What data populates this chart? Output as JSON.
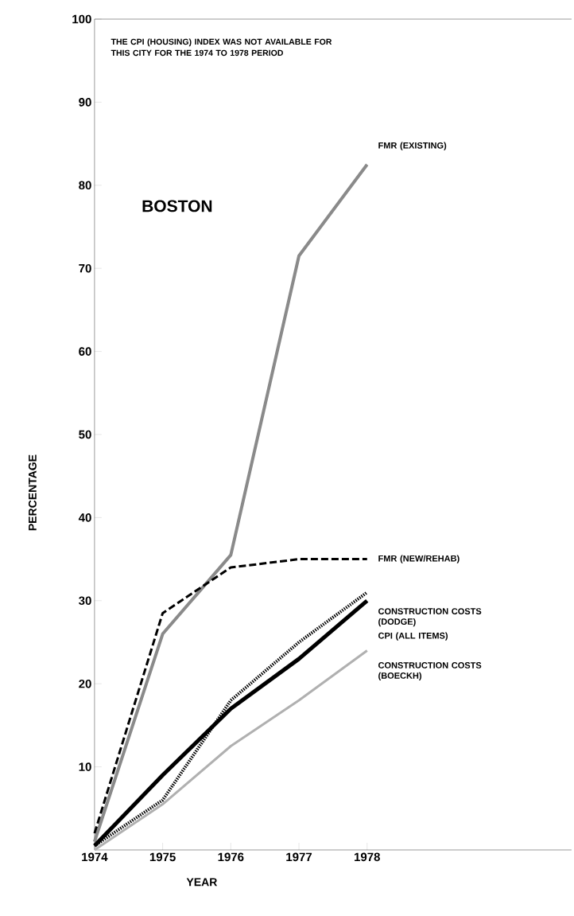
{
  "chart_data": {
    "type": "line",
    "title": "BOSTON",
    "xlabel": "YEAR",
    "ylabel": "PERCENTAGE",
    "annotations": [
      "THE CPI (HOUSING) INDEX WAS NOT AVAILABLE FOR THIS CITY FOR THE 1974 TO 1978 PERIOD"
    ],
    "x": [
      1974,
      1975,
      1976,
      1977,
      1978
    ],
    "series": [
      {
        "name": "FMR (EXISTING)",
        "color": "#8a8a8a",
        "line_style": "solid",
        "values": [
          1,
          26,
          35.5,
          71.5,
          82.5
        ]
      },
      {
        "name": "FMR (NEW/REHAB)",
        "color": "#000000",
        "line_style": "dashed",
        "values": [
          2,
          28.5,
          34,
          35,
          35
        ]
      },
      {
        "name": "CONSTRUCTION COSTS (DODGE)",
        "color": "#000000",
        "line_style": "dotted",
        "values": [
          0.5,
          6,
          18,
          25,
          31
        ]
      },
      {
        "name": "CPI (ALL ITEMS)",
        "color": "#000000",
        "line_style": "solid",
        "values": [
          0.5,
          9,
          17,
          23,
          30
        ]
      },
      {
        "name": "CONSTRUCTION COSTS (BOECKH)",
        "color": "#b0b0b0",
        "line_style": "solid",
        "values": [
          0,
          5.5,
          12.5,
          18,
          24
        ]
      }
    ],
    "xlim": [
      1974,
      1981
    ],
    "xticks": [
      1974,
      1975,
      1976,
      1977,
      1978
    ],
    "ylim": [
      0,
      100
    ],
    "yticks": [
      10,
      20,
      30,
      40,
      50,
      60,
      70,
      80,
      90,
      100
    ],
    "grid": false,
    "legend": false,
    "marker": "none"
  }
}
